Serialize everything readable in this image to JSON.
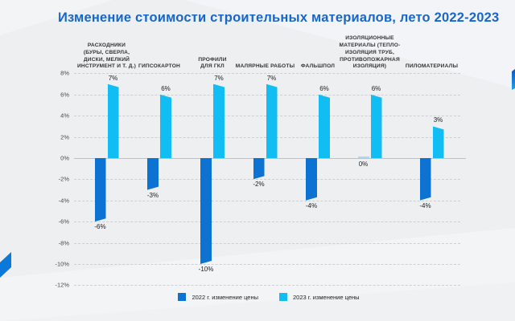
{
  "page": {
    "background_color": "#edeff1",
    "accent_color": "#0d73d2"
  },
  "chart_data": {
    "type": "bar",
    "title": "Изменение стоимости строительных материалов, лето 2022-2023",
    "title_color": "#1766c9",
    "unit": "%",
    "ylim": [
      -12,
      8
    ],
    "ytick_step": 2,
    "grid": "horizontal-dashed",
    "legend_position": "bottom",
    "categories": [
      "РАСХОДНИКИ\n(БУРЫ, СВЕРЛА,\nДИСКИ, МЕЛКИЙ\nИНСТРУМЕНТ И Т. Д.)",
      "ГИПСОКАРТОН",
      "ПРОФИЛИ\nДЛЯ ГКЛ",
      "МАЛЯРНЫЕ РАБОТЫ",
      "ФАЛЬШПОЛ",
      "ИЗОЛЯЦИОННЫЕ\nМАТЕРИАЛЫ (ТЕПЛО-\nИЗОЛЯЦИЯ ТРУБ,\nПРОТИВОПОЖАРНАЯ\nИЗОЛЯЦИЯ)",
      "ПИЛОМАТЕРИАЛЫ"
    ],
    "series": [
      {
        "name": "2022 г. изменение цены",
        "color": "#0d73d2",
        "values": [
          -6,
          -3,
          -10,
          -2,
          -4,
          0,
          -4
        ],
        "value_labels": [
          "-6%",
          "-3%",
          "-10%",
          "-2%",
          "-4%",
          "0%",
          "-4%"
        ]
      },
      {
        "name": "2023 г. изменение цены",
        "color": "#12bdf3",
        "values": [
          7,
          6,
          7,
          7,
          6,
          6,
          3
        ],
        "value_labels": [
          "7%",
          "6%",
          "7%",
          "7%",
          "6%",
          "6%",
          "3%"
        ]
      }
    ],
    "yticks": [
      {
        "v": 8,
        "label": "8%"
      },
      {
        "v": 6,
        "label": "6%"
      },
      {
        "v": 4,
        "label": "4%"
      },
      {
        "v": 2,
        "label": "2%"
      },
      {
        "v": 0,
        "label": "0%"
      },
      {
        "v": -2,
        "label": "-2%"
      },
      {
        "v": -4,
        "label": "-4%"
      },
      {
        "v": -6,
        "label": "-6%"
      },
      {
        "v": -8,
        "label": "-8%"
      },
      {
        "v": -10,
        "label": "-10%"
      },
      {
        "v": -12,
        "label": "-12%"
      }
    ]
  },
  "legend": [
    {
      "label": "2022 г. изменение цены",
      "color": "#0d73d2"
    },
    {
      "label": "2023 г. изменение цены",
      "color": "#12bdf3"
    }
  ],
  "colors": {
    "zero_bar": "#b3d5f2",
    "grid": "#cdd0d3",
    "baseline": "#bfc2c5"
  }
}
